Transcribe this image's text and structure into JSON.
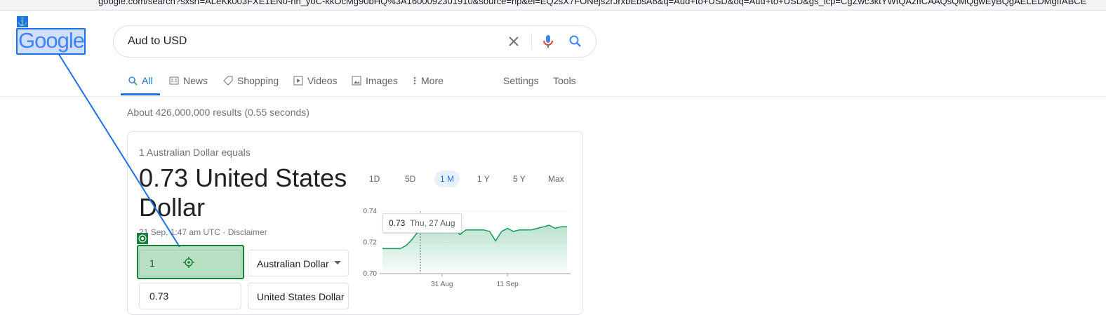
{
  "browser": {
    "url": "google.com/search?sxsrf=ALeKk003FXE1EN0-hh_yoC-kkOcMg90bHQ%3A1600092301910&source=hp&ei=EQ2sX7FONejs2rJrxbEbsA8&q=Aud+to+USD&oq=Aud+to+USD&gs_lcp=CgZwc3ktYWIQAzIICAAQsQMQgwEyBQgAELEDMgIIABCE"
  },
  "header": {
    "logo": "Google",
    "search_query": "Aud to USD"
  },
  "tabs": [
    "All",
    "News",
    "Shopping",
    "Videos",
    "Images",
    "More"
  ],
  "tools": [
    "Settings",
    "Tools"
  ],
  "result_stats": "About 426,000,000 results (0.55 seconds)",
  "converter": {
    "caption": "1 Australian Dollar equals",
    "result": "0.73 United States Dollar",
    "timestamp": "21 Sep, 1:47 am UTC · Disclaimer",
    "amount_input": "1",
    "from_currency": "Australian Dollar",
    "to_amount": "0.73",
    "to_currency": "United States Dollar",
    "range_buttons": [
      "1D",
      "5D",
      "1 M",
      "1 Y",
      "5 Y",
      "Max"
    ],
    "chart": {
      "type": "line",
      "color": "#0f9d58",
      "values": [
        0.716,
        0.716,
        0.716,
        0.716,
        0.718,
        0.722,
        0.727,
        0.729,
        0.73,
        0.73,
        0.729,
        0.729,
        0.73,
        0.725,
        0.728,
        0.728,
        0.728,
        0.728,
        0.727,
        0.721,
        0.727,
        0.729,
        0.727,
        0.728,
        0.728,
        0.728,
        0.729,
        0.73,
        0.731,
        0.729,
        0.73,
        0.73
      ],
      "xlim": [
        0,
        31
      ],
      "ylim": [
        0.7,
        0.74
      ],
      "yticks": [
        {
          "value": 0.7,
          "label": "0.70"
        },
        {
          "value": 0.72,
          "label": "0.72"
        },
        {
          "value": 0.74,
          "label": "0.74"
        }
      ],
      "xticks": [
        {
          "value": 10,
          "label": "31 Aug"
        },
        {
          "value": 21,
          "label": "11 Sep"
        }
      ],
      "tooltip": {
        "value": 0.73,
        "date": "Thu, 27 Aug"
      }
    }
  }
}
